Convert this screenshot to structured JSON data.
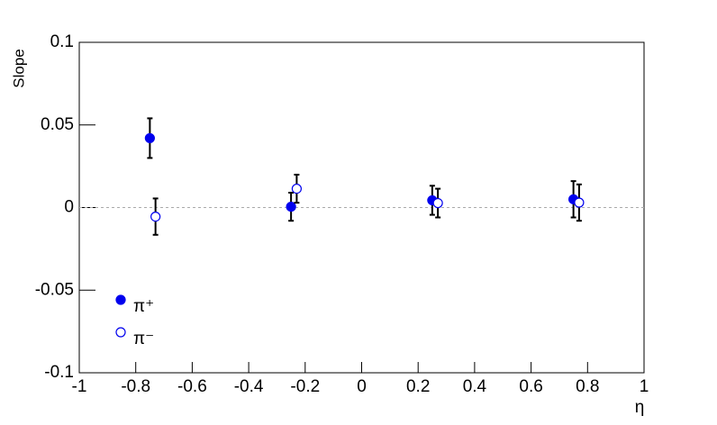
{
  "chart_data": {
    "type": "scatter",
    "x_label": "η",
    "y_label": "Slope",
    "xlim": [
      -1,
      1
    ],
    "ylim": [
      -0.1,
      0.1
    ],
    "xticks": [
      -1,
      -0.8,
      -0.6,
      -0.4,
      -0.2,
      0,
      0.2,
      0.4,
      0.6,
      0.8,
      1
    ],
    "yticks": [
      -0.1,
      -0.05,
      0,
      0.05,
      0.1
    ],
    "reference_line": 0,
    "legend": "bottom-left",
    "series": [
      {
        "name": "π⁺",
        "color": "#0000ee",
        "marker": "filled",
        "x": [
          -0.75,
          -0.25,
          0.25,
          0.75
        ],
        "values": [
          0.042,
          0.0005,
          0.0044,
          0.005
        ],
        "errors": [
          0.012,
          0.0085,
          0.0088,
          0.011
        ]
      },
      {
        "name": "π⁻",
        "color": "#0000ee",
        "marker": "open",
        "x": [
          -0.73,
          -0.23,
          0.27,
          0.77
        ],
        "values": [
          -0.0055,
          0.0114,
          0.0027,
          0.003
        ],
        "errors": [
          0.011,
          0.0085,
          0.0087,
          0.011
        ]
      }
    ]
  }
}
